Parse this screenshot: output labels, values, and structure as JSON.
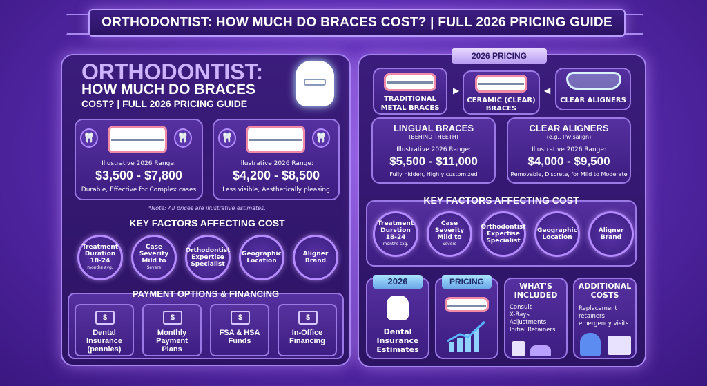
{
  "banner": {
    "title": "ORTHODONTIST: HOW MUCH DO BRACES COST? | FULL 2026 PRICING GUIDE"
  },
  "left": {
    "title_l1": "ORTHODONTIST:",
    "title_l2": "HOW MUCH DO BRACES",
    "title_l3": "COST? | FULL 2026 PRICING GUIDE",
    "price_cards": [
      {
        "range_label": "Illustrative 2026 Range:",
        "range": "$3,500 - $7,800",
        "desc": "Durable, Effective for Complex cases"
      },
      {
        "range_label": "Illustrative 2026 Range:",
        "range": "$4,200 - $8,500",
        "desc": "Less visible, Aesthetically pleasing"
      }
    ],
    "note": "*Note: All prices are illustrative estimates.",
    "factors_title": "KEY FACTORS AFFECTING COST",
    "factors": [
      {
        "l1": "Treatment",
        "l2": "Duration",
        "l3": "18-24",
        "l4": "months avg."
      },
      {
        "l1": "Case",
        "l2": "Severity",
        "l3": "Mild to",
        "l4": "Severe"
      },
      {
        "l1": "Orthodontist",
        "l2": "Expertise",
        "l3": "Specialist",
        "l4": ""
      },
      {
        "l1": "Geographic",
        "l2": "Location",
        "l3": "",
        "l4": ""
      },
      {
        "l1": "Aligner",
        "l2": "Brand",
        "l3": "",
        "l4": ""
      }
    ],
    "payment_title": "PAYMENT OPTIONS & FINANCING",
    "payments": [
      {
        "l1": "Dental",
        "l2": "Insurance",
        "l3": "(pennies)",
        "icon": "tooth-icon"
      },
      {
        "l1": "Monthly",
        "l2": "Payment",
        "l3": "Plans",
        "icon": "calendar-icon"
      },
      {
        "l1": "FSA & HSA",
        "l2": "Funds",
        "l3": "",
        "icon": "dollar-bill-icon"
      },
      {
        "l1": "In-Office",
        "l2": "Financing",
        "l3": "",
        "icon": "cash-icon"
      }
    ]
  },
  "right": {
    "tab": "2026 PRICING",
    "types": [
      {
        "l1": "TRADITIONAL",
        "l2": "METAL BRACES"
      },
      {
        "l1": "CERAMIC (CLEAR)",
        "l2": "BRACES"
      },
      {
        "l1": "CLEAR ALIGNERS",
        "l2": ""
      }
    ],
    "cards": [
      {
        "title": "LINGUAL BRACES",
        "sub": "(BEHIND THEETH)",
        "range_label": "Illustrative 2026 Range:",
        "range": "$5,500 - $11,000",
        "desc": "Fully hidden, Highly customized"
      },
      {
        "title": "CLEAR ALIGNERS",
        "sub": "(e.g., Invisalign)",
        "range_label": "Illustrative 2026 Range:",
        "range": "$4,000 - $9,500",
        "desc": "Removable, Discrete, for Mild to Moderate"
      }
    ],
    "factors_title": "KEY FACTORS AFFECTING COST",
    "factors": [
      {
        "l1": "Treatment",
        "l2": "Durstion",
        "l3": "18-24",
        "l4": "months sxg."
      },
      {
        "l1": "Case",
        "l2": "Severity",
        "l3": "Mild to",
        "l4": "Severe"
      },
      {
        "l1": "Orthodontist",
        "l2": "Expertise",
        "l3": "Specialist",
        "l4": ""
      },
      {
        "l1": "Geographic",
        "l2": "Location",
        "l3": "",
        "l4": ""
      },
      {
        "l1": "Aligner",
        "l2": "Brand",
        "l3": "",
        "l4": ""
      }
    ],
    "bottom": {
      "tab1": "2026",
      "ins_l1": "Dental",
      "ins_l2": "Insurance",
      "ins_l3": "Estimates",
      "tab2": "PRICING",
      "incl_title_l1": "WHAT'S",
      "incl_title_l2": "INCLUDED",
      "included": [
        "Consult",
        "X-Rays",
        "Adjustments",
        "Initial Retainers"
      ],
      "add_title_l1": "ADDITIONAL",
      "add_title_l2": "COSTS",
      "add_items": [
        "Replacement",
        "retainers",
        "emergency visits"
      ]
    }
  },
  "colors": {
    "accent": "#b58cff",
    "panel": "#2c1363",
    "price": "#ffffff"
  }
}
